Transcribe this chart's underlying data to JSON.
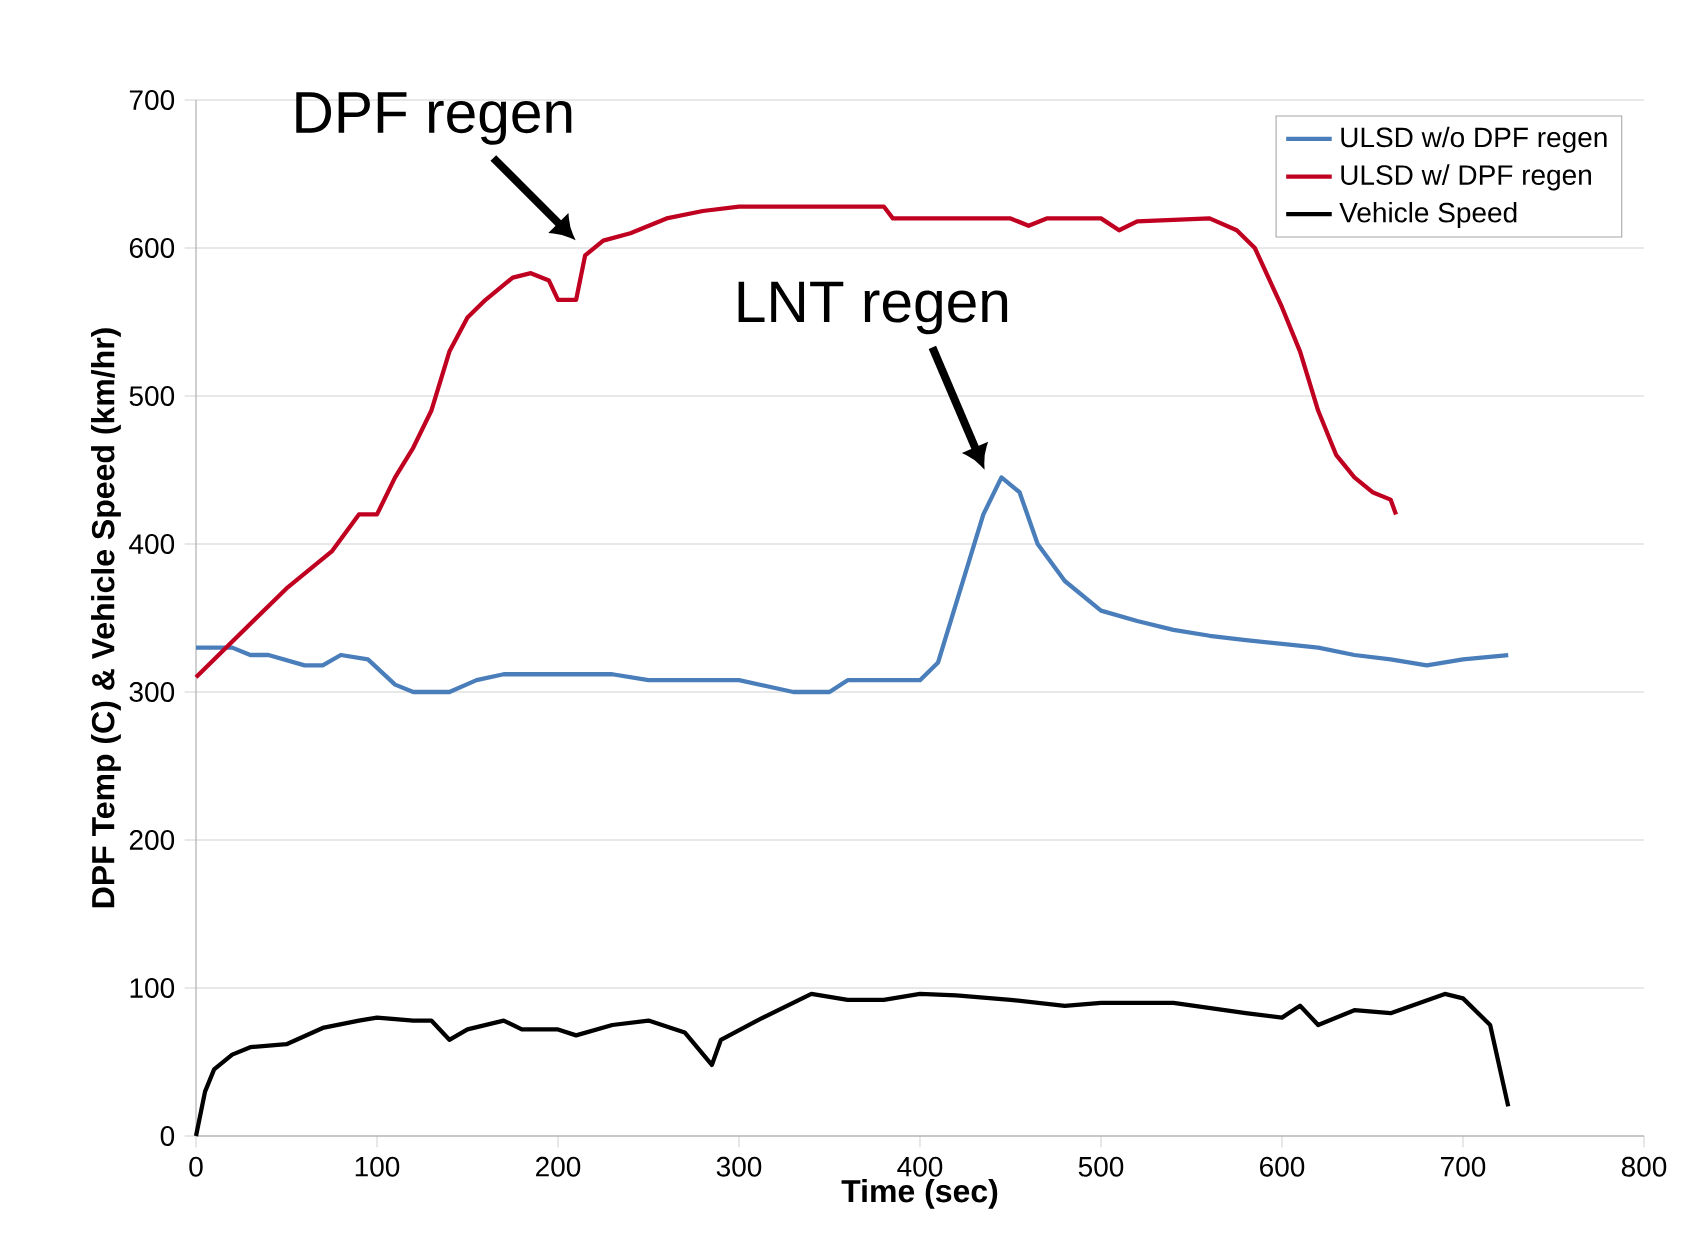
{
  "chart_data": {
    "type": "line",
    "xlabel": "Time (sec)",
    "ylabel": "DPF Temp (C) & Vehicle Speed (km/hr)",
    "xlim": [
      0,
      800
    ],
    "xticks": [
      0,
      100,
      200,
      300,
      400,
      500,
      600,
      700,
      800
    ],
    "ylim": [
      0,
      700
    ],
    "yticks": [
      0,
      100,
      200,
      300,
      400,
      500,
      600,
      700
    ],
    "grid": "y",
    "legend": "top right",
    "marker": "none",
    "line_style": "solid",
    "annotations": [
      {
        "text": "DPF regen",
        "x": 214,
        "y": 600
      },
      {
        "text": "LNT regen",
        "x": 440,
        "y": 445
      }
    ],
    "series": [
      {
        "name": "ULSD w/o DPF regen",
        "color": "#4a7ebb",
        "x": [
          0,
          20,
          30,
          40,
          60,
          70,
          80,
          95,
          110,
          120,
          140,
          155,
          170,
          230,
          250,
          300,
          330,
          350,
          360,
          400,
          410,
          420,
          435,
          445,
          455,
          465,
          480,
          500,
          520,
          540,
          560,
          580,
          620,
          640,
          660,
          680,
          700,
          725
        ],
        "values": [
          330,
          330,
          325,
          325,
          318,
          318,
          325,
          322,
          305,
          300,
          300,
          308,
          312,
          312,
          308,
          308,
          300,
          300,
          308,
          308,
          320,
          360,
          420,
          445,
          435,
          400,
          375,
          355,
          348,
          342,
          338,
          335,
          330,
          325,
          322,
          318,
          322,
          325
        ]
      },
      {
        "name": "ULSD w/ DPF regen",
        "color": "#c00020",
        "x": [
          0,
          50,
          75,
          90,
          100,
          110,
          120,
          130,
          140,
          150,
          160,
          175,
          185,
          195,
          200,
          210,
          215,
          225,
          240,
          260,
          280,
          300,
          380,
          385,
          450,
          460,
          470,
          500,
          510,
          520,
          560,
          575,
          585,
          600,
          610,
          620,
          630,
          640,
          650,
          660,
          663
        ],
        "values": [
          310,
          370,
          395,
          420,
          420,
          445,
          465,
          490,
          530,
          553,
          565,
          580,
          583,
          578,
          565,
          565,
          595,
          605,
          610,
          620,
          625,
          628,
          628,
          620,
          620,
          615,
          620,
          620,
          612,
          618,
          620,
          612,
          600,
          560,
          530,
          490,
          460,
          445,
          435,
          430,
          420
        ]
      },
      {
        "name": "Vehicle Speed",
        "color": "#000000",
        "x": [
          0,
          5,
          10,
          20,
          30,
          50,
          70,
          90,
          100,
          120,
          130,
          140,
          150,
          170,
          180,
          200,
          210,
          230,
          250,
          270,
          285,
          290,
          310,
          330,
          340,
          360,
          380,
          400,
          420,
          450,
          480,
          500,
          540,
          580,
          600,
          610,
          620,
          640,
          660,
          690,
          700,
          715,
          725
        ],
        "values": [
          0,
          30,
          45,
          55,
          60,
          62,
          73,
          78,
          80,
          78,
          78,
          65,
          72,
          78,
          72,
          72,
          68,
          75,
          78,
          70,
          48,
          65,
          78,
          90,
          96,
          92,
          92,
          96,
          95,
          92,
          88,
          90,
          90,
          83,
          80,
          88,
          75,
          85,
          83,
          96,
          93,
          75,
          20
        ]
      }
    ]
  }
}
